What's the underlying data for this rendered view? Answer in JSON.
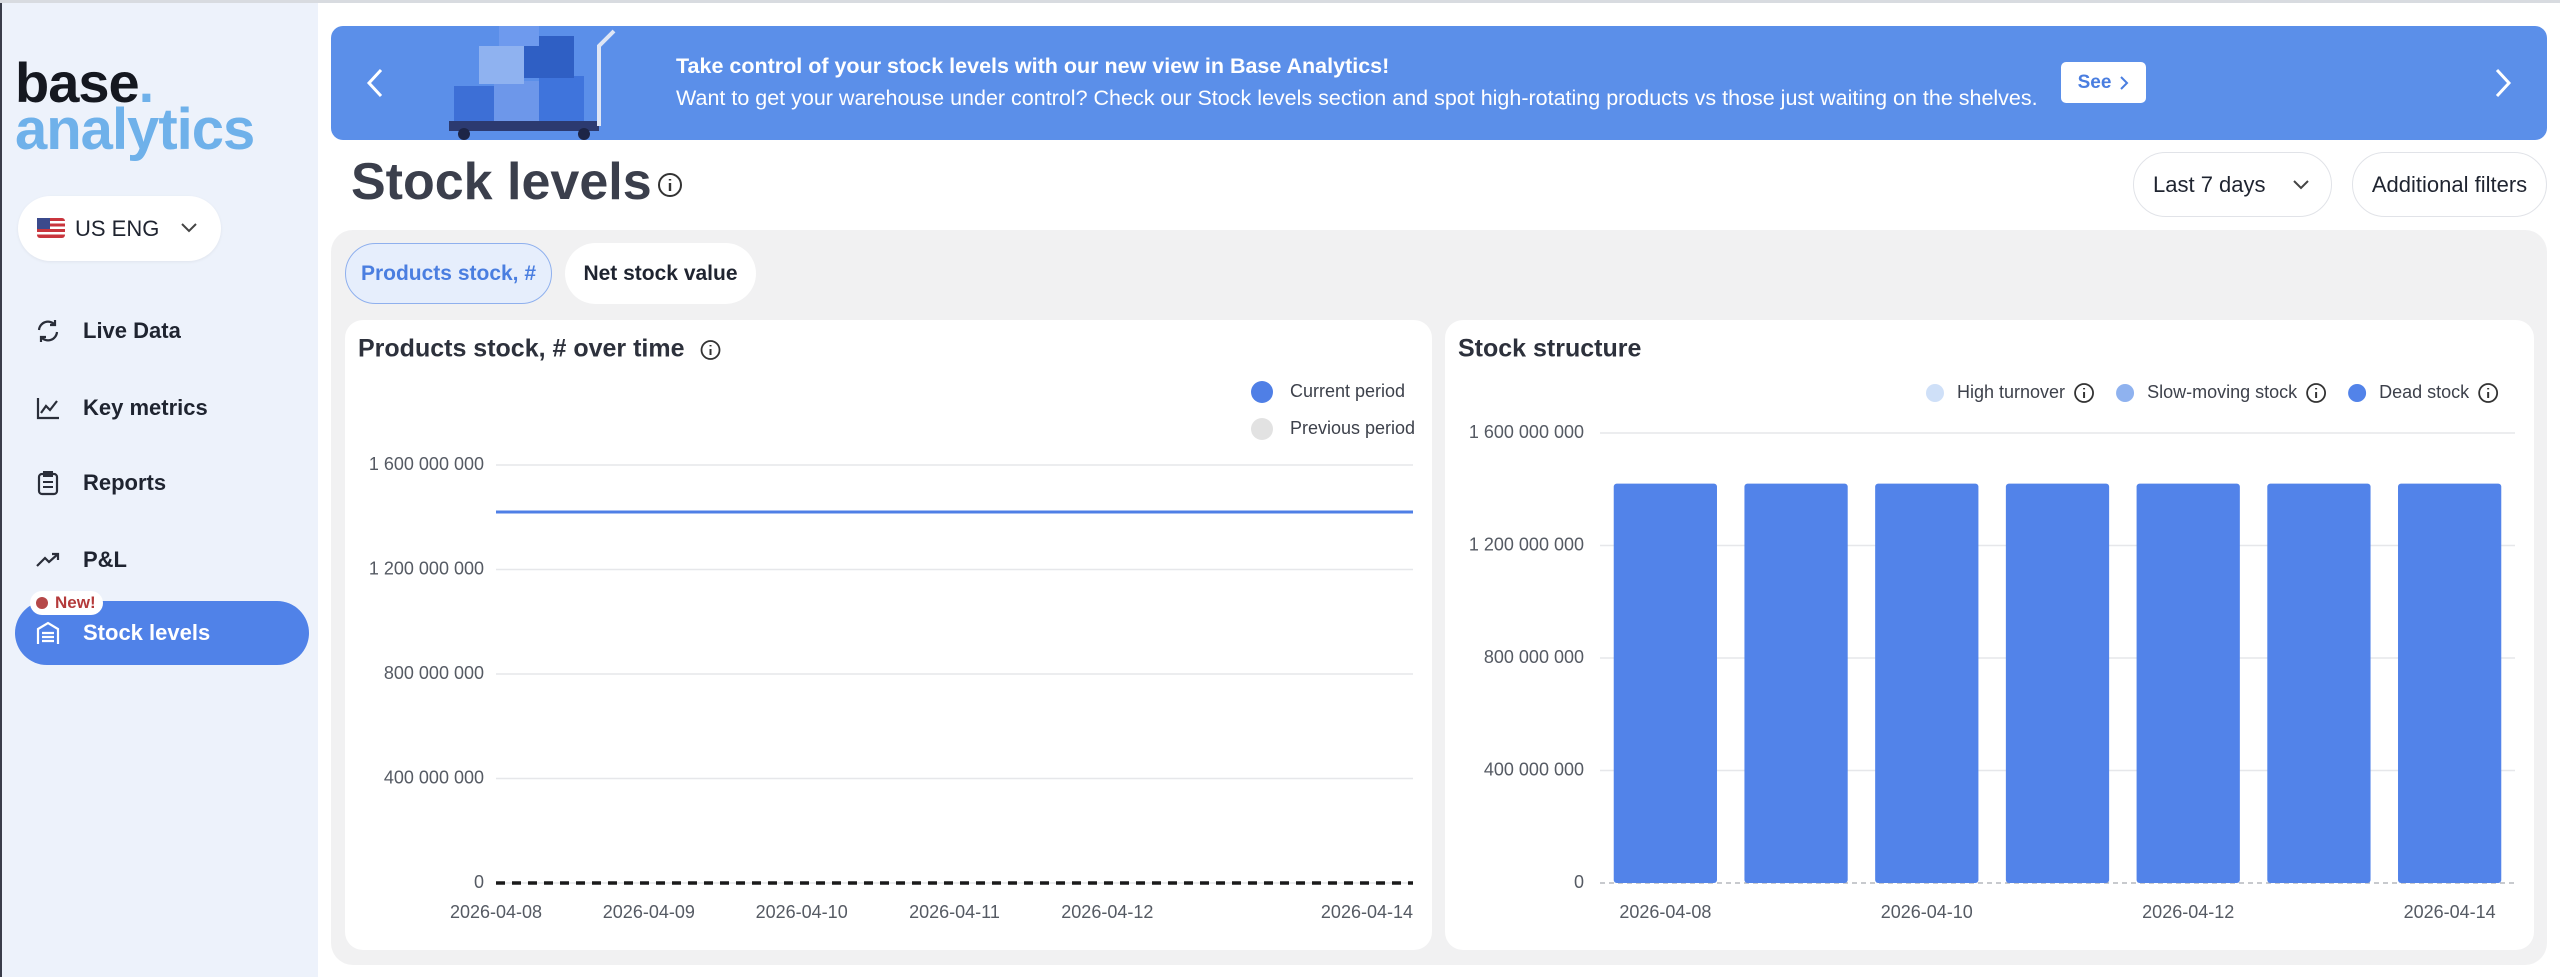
{
  "logo": {
    "word": "base",
    "dot": ".",
    "sub": "analytics"
  },
  "language": "US ENG",
  "nav": [
    "Live Data",
    "Key metrics",
    "Reports",
    "P&L",
    "Stock levels"
  ],
  "badge": "New!",
  "banner": {
    "headline": "Take control of your stock levels with our new view in Base Analytics!",
    "text": "Want to get your warehouse under control? Check our Stock levels section and spot high-rotating products vs those just waiting on the shelves.",
    "button": "See"
  },
  "header": {
    "title": "Stock levels",
    "period": "Last 7 days",
    "filters": "Additional filters"
  },
  "tabs": [
    "Products stock, #",
    "Net stock value"
  ],
  "chart_data": [
    {
      "type": "line",
      "title": "Products stock, # over time",
      "categories": [
        "2026-04-08",
        "2026-04-09",
        "2026-04-10",
        "2026-04-11",
        "2026-04-12",
        null,
        "2026-04-14"
      ],
      "series": [
        {
          "name": "Current period",
          "color": "#4f7fe6",
          "values": [
            1420000000,
            1420000000,
            1420000000,
            1420000000,
            1420000000,
            1420000000,
            1420000000
          ]
        },
        {
          "name": "Previous period",
          "color": "#e2e2e2",
          "line_color": "#1a1a1a",
          "dashed": true,
          "values": [
            0,
            0,
            0,
            0,
            0,
            0,
            0
          ]
        }
      ],
      "ylim": [
        0,
        1600000000
      ],
      "yticks": [
        0,
        {
          "value": 400000000,
          "label": "400 000 000"
        },
        {
          "value": 800000000,
          "label": "800 000 000"
        },
        {
          "value": 1200000000,
          "label": "1 200 000 000"
        },
        {
          "value": 1600000000,
          "label": "1 600 000 000"
        }
      ],
      "grid": true,
      "legend": "top-right"
    },
    {
      "type": "bar",
      "title": "Stock structure",
      "stacked": true,
      "categories": [
        "2026-04-08",
        null,
        "2026-04-10",
        null,
        "2026-04-12",
        null,
        "2026-04-14"
      ],
      "series": [
        {
          "name": "High turnover",
          "color": "#cfe0f8",
          "values": [
            0,
            0,
            0,
            0,
            0,
            0,
            0
          ]
        },
        {
          "name": "Slow-moving stock",
          "color": "#8fb2ef",
          "values": [
            0,
            0,
            0,
            0,
            0,
            0,
            0
          ]
        },
        {
          "name": "Dead stock",
          "color": "#5283e9",
          "values": [
            1420000000,
            1420000000,
            1420000000,
            1420000000,
            1420000000,
            1420000000,
            1420000000
          ]
        }
      ],
      "ylim": [
        0,
        1600000000
      ],
      "yticks": [
        0,
        {
          "value": 400000000,
          "label": "400 000 000"
        },
        {
          "value": 800000000,
          "label": "800 000 000"
        },
        {
          "value": 1200000000,
          "label": "1 200 000 000"
        },
        {
          "value": 1600000000,
          "label": "1 600 000 000"
        }
      ],
      "grid": true,
      "legend": "top-right"
    }
  ]
}
